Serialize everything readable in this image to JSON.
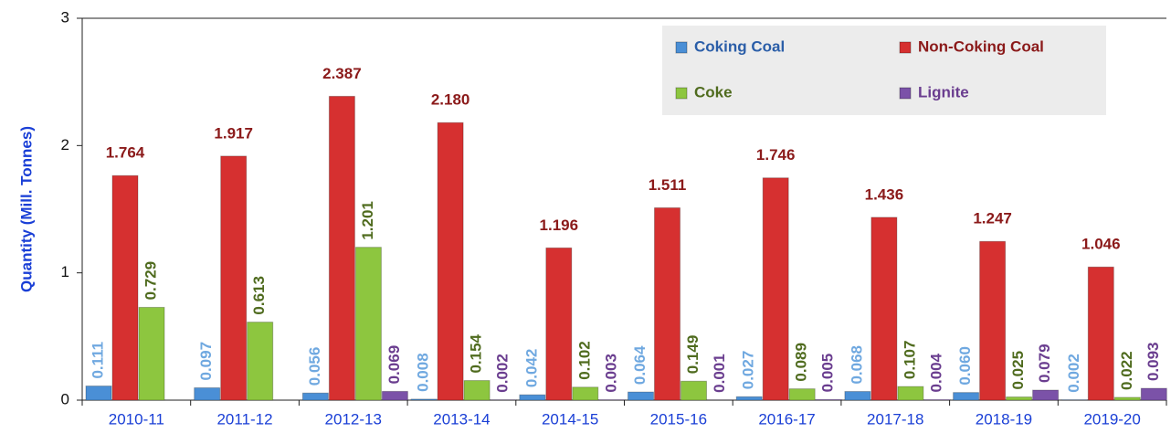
{
  "chart_data": {
    "type": "bar",
    "y_label": "Quantity (Mill. Tonnes)",
    "categories": [
      "2010-11",
      "2011-12",
      "2012-13",
      "2013-14",
      "2014-15",
      "2015-16",
      "2016-17",
      "2017-18",
      "2018-19",
      "2019-20"
    ],
    "ylim": [
      0,
      3
    ],
    "yticks": [
      0,
      1,
      2,
      3
    ],
    "grid": false,
    "legend": "top-right",
    "series": [
      {
        "name": "Coking Coal",
        "color": "#4a8fd6",
        "label_color": "#6fa8e0",
        "values": [
          0.111,
          0.097,
          0.056,
          0.008,
          0.042,
          0.064,
          0.027,
          0.068,
          0.06,
          0.002
        ],
        "value_labels": [
          "0.111",
          "0.097",
          "0.056",
          "0.008",
          "0.042",
          "0.064",
          "0.027",
          "0.068",
          "0.060",
          "0.002"
        ]
      },
      {
        "name": "Non-Coking Coal",
        "color": "#d63030",
        "label_color": "#8b1a1a",
        "values": [
          1.764,
          1.917,
          2.387,
          2.18,
          1.196,
          1.511,
          1.746,
          1.436,
          1.247,
          1.046
        ],
        "value_labels": [
          "1.764",
          "1.917",
          "2.387",
          "2.180",
          "1.196",
          "1.511",
          "1.746",
          "1.436",
          "1.247",
          "1.046"
        ]
      },
      {
        "name": "Coke",
        "color": "#8dc63f",
        "label_color": "#4f6b1e",
        "values": [
          0.729,
          0.613,
          1.201,
          0.154,
          0.102,
          0.149,
          0.089,
          0.107,
          0.025,
          0.022
        ],
        "value_labels": [
          "0.729",
          "0.613",
          "1.201",
          "0.154",
          "0.102",
          "0.149",
          "0.089",
          "0.107",
          "0.025",
          "0.022"
        ]
      },
      {
        "name": "Lignite",
        "color": "#7b52a8",
        "label_color": "#6a3d8f",
        "values": [
          null,
          null,
          0.069,
          0.002,
          0.003,
          0.001,
          0.005,
          0.004,
          0.079,
          0.093
        ],
        "value_labels": [
          null,
          null,
          "0.069",
          "0.002",
          "0.003",
          "0.001",
          "0.005",
          "0.004",
          "0.079",
          "0.093"
        ]
      }
    ]
  }
}
